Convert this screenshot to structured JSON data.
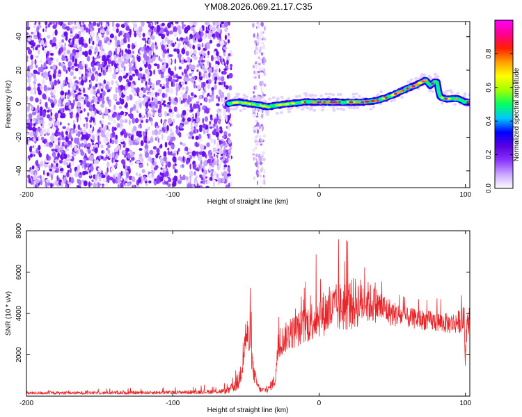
{
  "title": "YM08.2026.069.21.17.C35",
  "chart_data": [
    {
      "type": "heatmap",
      "xlabel": "Height of straight line (km)",
      "ylabel": "Frequency (Hz)",
      "xlim": [
        -200,
        103
      ],
      "ylim": [
        -50,
        49
      ],
      "xticks": [
        -200,
        -100,
        0,
        100
      ],
      "yticks": [
        -40,
        -20,
        0,
        20,
        40
      ],
      "noise_region": [
        -200,
        -60
      ],
      "noise_band": [
        -45,
        -37
      ],
      "signal_line": {
        "x": [
          -62,
          -55,
          -48,
          -40,
          -35,
          -30,
          -20,
          -10,
          0,
          10,
          20,
          30,
          40,
          50,
          60,
          66,
          70,
          73,
          76,
          79,
          81,
          82,
          83,
          86,
          90,
          95,
          100,
          103
        ],
        "y": [
          0,
          1,
          0,
          -1,
          -2,
          -1,
          0,
          1,
          1,
          1,
          1,
          1,
          2,
          5,
          9,
          11,
          13,
          14,
          11,
          13,
          13,
          5,
          4,
          3,
          3,
          3,
          1,
          1
        ]
      },
      "colorbar": {
        "label": "Normalized spectral amplitude",
        "range": [
          0,
          1
        ],
        "ticks": [
          "0.0",
          "0.2",
          "0.4",
          "0.6",
          "0.8"
        ],
        "ticks_numeric": [
          0,
          0.2,
          0.4,
          0.6,
          0.8
        ],
        "colors": [
          "#ffffff",
          "#c9a7ff",
          "#8a33ff",
          "#5a00e0",
          "#0000ff",
          "#00c8ff",
          "#00ff60",
          "#a0ff00",
          "#ffff00",
          "#ffa000",
          "#ff2000",
          "#ff0090",
          "#ff00ff"
        ]
      }
    },
    {
      "type": "line",
      "xlabel": "Height of straight line (km)",
      "ylabel": "SNR (10 * v/v)",
      "xlim": [
        -200,
        103
      ],
      "ylim": [
        0,
        8000
      ],
      "xticks": [
        -200,
        -100,
        0,
        100
      ],
      "yticks": [
        2000,
        4000,
        6000,
        8000
      ],
      "color": "#e8262a",
      "series": [
        {
          "name": "SNR",
          "envelope_x": [
            -200,
            -150,
            -100,
            -70,
            -62,
            -55,
            -52,
            -50,
            -47,
            -45,
            -42,
            -40,
            -35,
            -30,
            -28,
            -25,
            -20,
            -10,
            0,
            10,
            20,
            25,
            30,
            40,
            50,
            60,
            70,
            80,
            90,
            95,
            99,
            100,
            101,
            103
          ],
          "envelope_y": [
            150,
            160,
            180,
            220,
            250,
            700,
            1800,
            3000,
            2500,
            1200,
            500,
            300,
            300,
            800,
            2300,
            2700,
            3000,
            3400,
            3900,
            4200,
            4400,
            4500,
            4600,
            4400,
            4000,
            3800,
            3700,
            3600,
            3500,
            3600,
            3700,
            1500,
            3500,
            3500
          ],
          "spread_y": [
            100,
            100,
            120,
            150,
            200,
            600,
            1200,
            1500,
            1200,
            700,
            300,
            200,
            200,
            500,
            900,
            1000,
            1100,
            1300,
            1500,
            1700,
            1800,
            1800,
            1600,
            1200,
            900,
            700,
            700,
            700,
            700,
            800,
            900,
            300,
            700,
            700
          ]
        }
      ]
    }
  ]
}
